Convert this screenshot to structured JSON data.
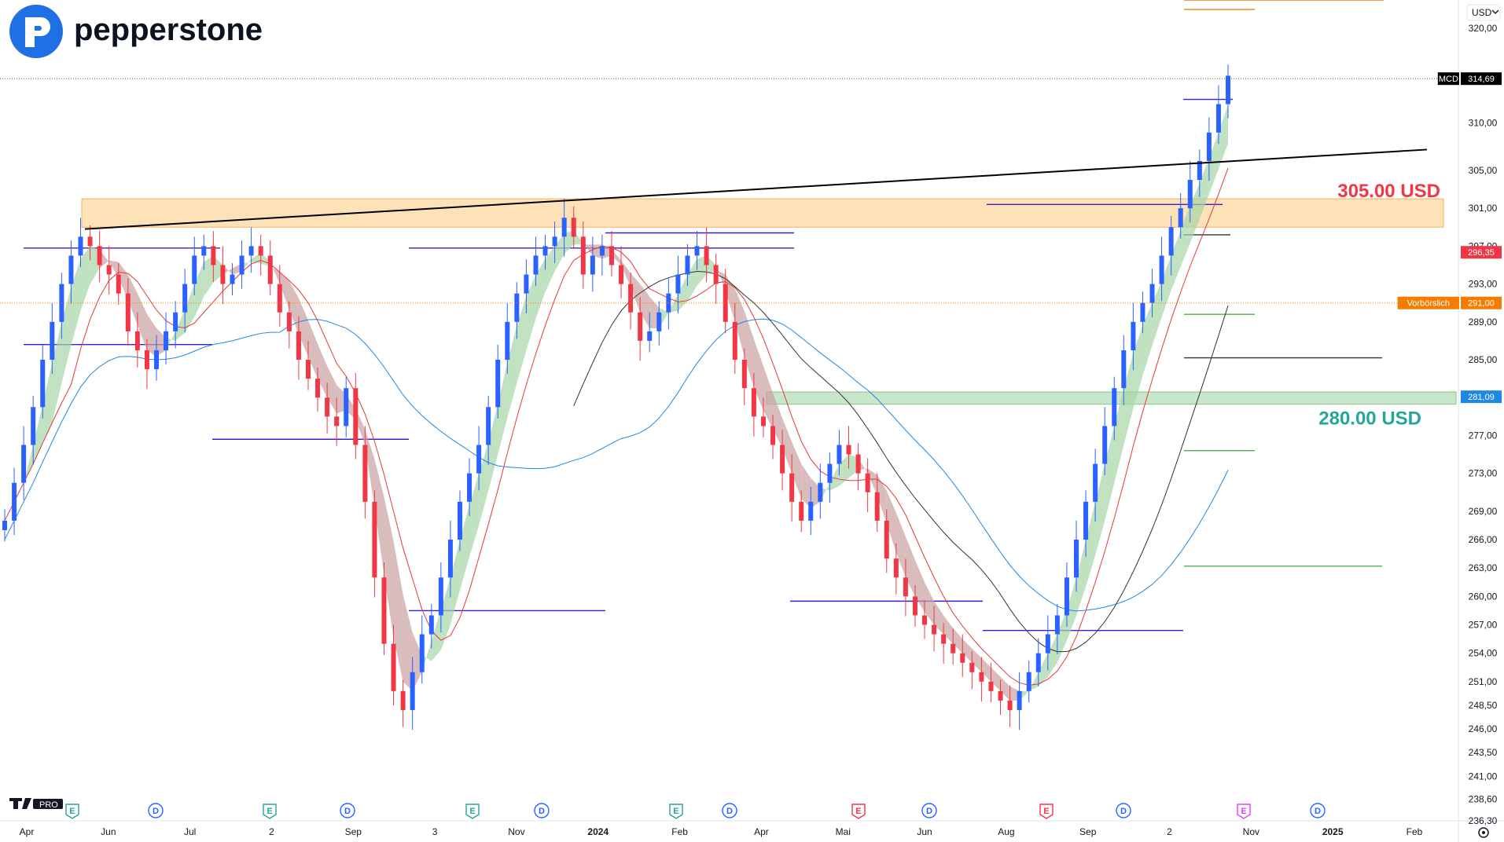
{
  "brand": {
    "name": "pepperstone",
    "tv_badge": "PRO"
  },
  "currency_selector": {
    "label": "USD",
    "caret": "chevron-down-icon"
  },
  "settings": {
    "icon": "gear-icon"
  },
  "colors": {
    "up": "#2962ff",
    "down": "#f23645",
    "resistance_zone": "#fde2b8",
    "support_zone": "#c8e6c9",
    "res_label": "#f23645",
    "sup_label": "#26a69a",
    "ema_fast": "#e53935",
    "sma_slow": "#1e88e5",
    "vwap": "#333333"
  },
  "chart_data": {
    "type": "candlestick",
    "symbol": "MCD",
    "last_price": "314,69",
    "ylim": [
      236.3,
      323.0
    ],
    "y_ticks": [
      "320,00",
      "310,00",
      "305,00",
      "301,00",
      "297,00",
      "293,00",
      "289,00",
      "285,00",
      "281,00",
      "277,00",
      "273,00",
      "269,00",
      "266,00",
      "263,00",
      "260,00",
      "257,00",
      "254,00",
      "251,00",
      "248,50",
      "246,00",
      "243,50",
      "241,00",
      "238,60",
      "236,30"
    ],
    "x_ticks": [
      "Apr",
      "Jun",
      "Jul",
      "2",
      "Sep",
      "3",
      "Nov",
      "2024",
      "Feb",
      "Apr",
      "Mai",
      "Jun",
      "Aug",
      "Sep",
      "2",
      "Nov",
      "2025",
      "Feb"
    ],
    "price_badges": [
      {
        "label": "MCD",
        "value": "314,69",
        "color": "#000000"
      },
      {
        "label": "",
        "value": "296,35",
        "color": "#f23645"
      },
      {
        "label": "Vorbörslich",
        "value": "291,00",
        "color": "#f57c00"
      },
      {
        "label": "",
        "value": "281,09",
        "color": "#1e88e5"
      }
    ],
    "zones": [
      {
        "name": "resistance",
        "label": "305.00 USD",
        "from": 299.0,
        "to": 302.0
      },
      {
        "name": "support",
        "label": "280.00 USD",
        "from": 280.3,
        "to": 281.6
      }
    ],
    "trendline": {
      "from": 298.8,
      "to": 307.2
    },
    "events": [
      {
        "type": "E",
        "color": "#26a69a"
      },
      {
        "type": "D",
        "color": "#2962ff"
      },
      {
        "type": "E",
        "color": "#26a69a"
      },
      {
        "type": "D",
        "color": "#2962ff"
      },
      {
        "type": "E",
        "color": "#26a69a"
      },
      {
        "type": "D",
        "color": "#2962ff"
      },
      {
        "type": "E",
        "color": "#26a69a"
      },
      {
        "type": "D",
        "color": "#2962ff"
      },
      {
        "type": "E",
        "color": "#f23645"
      },
      {
        "type": "D",
        "color": "#2962ff"
      },
      {
        "type": "E",
        "color": "#f23645"
      },
      {
        "type": "D",
        "color": "#2962ff"
      },
      {
        "type": "E",
        "color": "#e040fb"
      },
      {
        "type": "D",
        "color": "#2962ff"
      }
    ],
    "closes": [
      268,
      272,
      276,
      280,
      285,
      289,
      293,
      296,
      298,
      297,
      295,
      294,
      292,
      288,
      286,
      284,
      286,
      288,
      290,
      293,
      296,
      297,
      295,
      293,
      294,
      296,
      297,
      296,
      293,
      290,
      288,
      285,
      283,
      281,
      279,
      278,
      282,
      276,
      270,
      262,
      255,
      250,
      248,
      252,
      256,
      258,
      262,
      266,
      270,
      273,
      276,
      280,
      285,
      289,
      292,
      294,
      296,
      297,
      298,
      300,
      298,
      294,
      296,
      297,
      295,
      293,
      290,
      287,
      288,
      290,
      292,
      294,
      296,
      297,
      295,
      293,
      289,
      285,
      282,
      279,
      278,
      276,
      273,
      270,
      268,
      270,
      272,
      274,
      276,
      275,
      273,
      271,
      268,
      264,
      262,
      260,
      258,
      257,
      256,
      255,
      254,
      253,
      252,
      251,
      250,
      249,
      248,
      250,
      252,
      254,
      256,
      258,
      262,
      266,
      270,
      274,
      278,
      282,
      286,
      289,
      291,
      293,
      296,
      299,
      301,
      304,
      306,
      309,
      312,
      315
    ]
  }
}
